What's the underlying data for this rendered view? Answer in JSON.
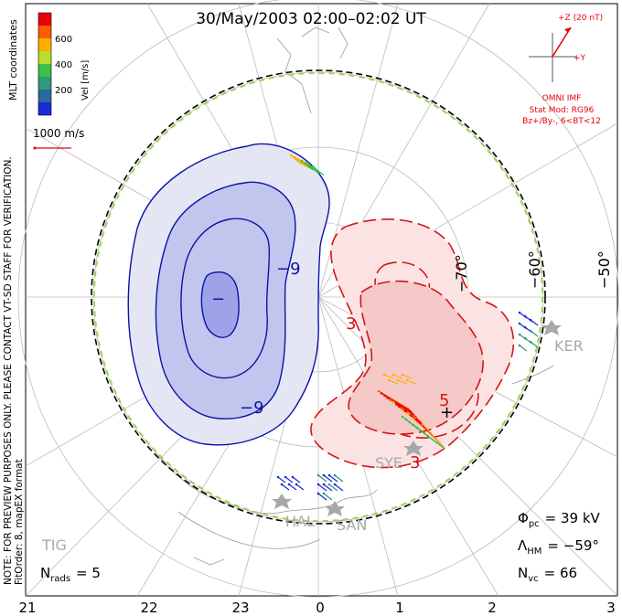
{
  "header": {
    "title": "30/May/2003 02:00–02:02 UT"
  },
  "colorbar": {
    "label": "Vel [m/s]",
    "ticks": [
      "600",
      "400",
      "200"
    ],
    "colors": [
      "#e8000b",
      "#ff5a00",
      "#ffae00",
      "#b8e02a",
      "#3cc04a",
      "#2e9a7a",
      "#2a6aa0",
      "#1a2ad8"
    ]
  },
  "coordinates_label": "MLT coordinates",
  "velocity_scale": {
    "label": "1000 m/s",
    "color": "#e8000b"
  },
  "side_notes": {
    "preview": "NOTE: FOR PREVIEW PURPOSES ONLY. PLEASE CONTACT VT-SD STAFF FOR VERIFICATION.",
    "fit": "FitOrder: 8, mapEX format"
  },
  "imf_panel": {
    "z_label": "+Z (20 nT)",
    "y_label": "+Y",
    "source": "OMNI IMF",
    "model": "Stat Mod: RG96",
    "condition": "Bz+/By-, 6<BT<12",
    "color": "#e8000b"
  },
  "stats": {
    "phi_pc_symbol": "Φ",
    "phi_pc_sub": "pc",
    "phi_pc_value": "= 39 kV",
    "lambda_hm_symbol": "Λ",
    "lambda_hm_sub": "HM",
    "lambda_hm_value": "= −59°",
    "n_vc_symbol": "N",
    "n_vc_sub": "vc",
    "n_vc_value": "= 66",
    "n_rads_symbol": "N",
    "n_rads_sub": "rads",
    "n_rads_value": "= 5"
  },
  "mlt_axis": [
    "21",
    "22",
    "23",
    "0",
    "1",
    "2",
    "3"
  ],
  "latitude_labels": [
    "−70°",
    "−60°",
    "−50°"
  ],
  "contour_labels": {
    "negative": [
      "−9",
      "−9"
    ],
    "positive": [
      "3",
      "5",
      "3"
    ],
    "min_marker": "−",
    "max_marker": "+"
  },
  "stations": [
    "KER",
    "SYE",
    "HAL",
    "SAN",
    "TIG"
  ],
  "colors": {
    "negative_cell_fill": "#e4e6f4",
    "negative_cell_inner": "#c2c6ee",
    "negative_cell_core": "#9da3e6",
    "negative_contour": "#0a14a8",
    "positive_cell_fill": "#fbe3e3",
    "positive_cell_inner": "#f6c9c9",
    "positive_contour": "#d81414",
    "boundary_green": "#9ad84a",
    "station_gray": "#a8a8a8"
  }
}
